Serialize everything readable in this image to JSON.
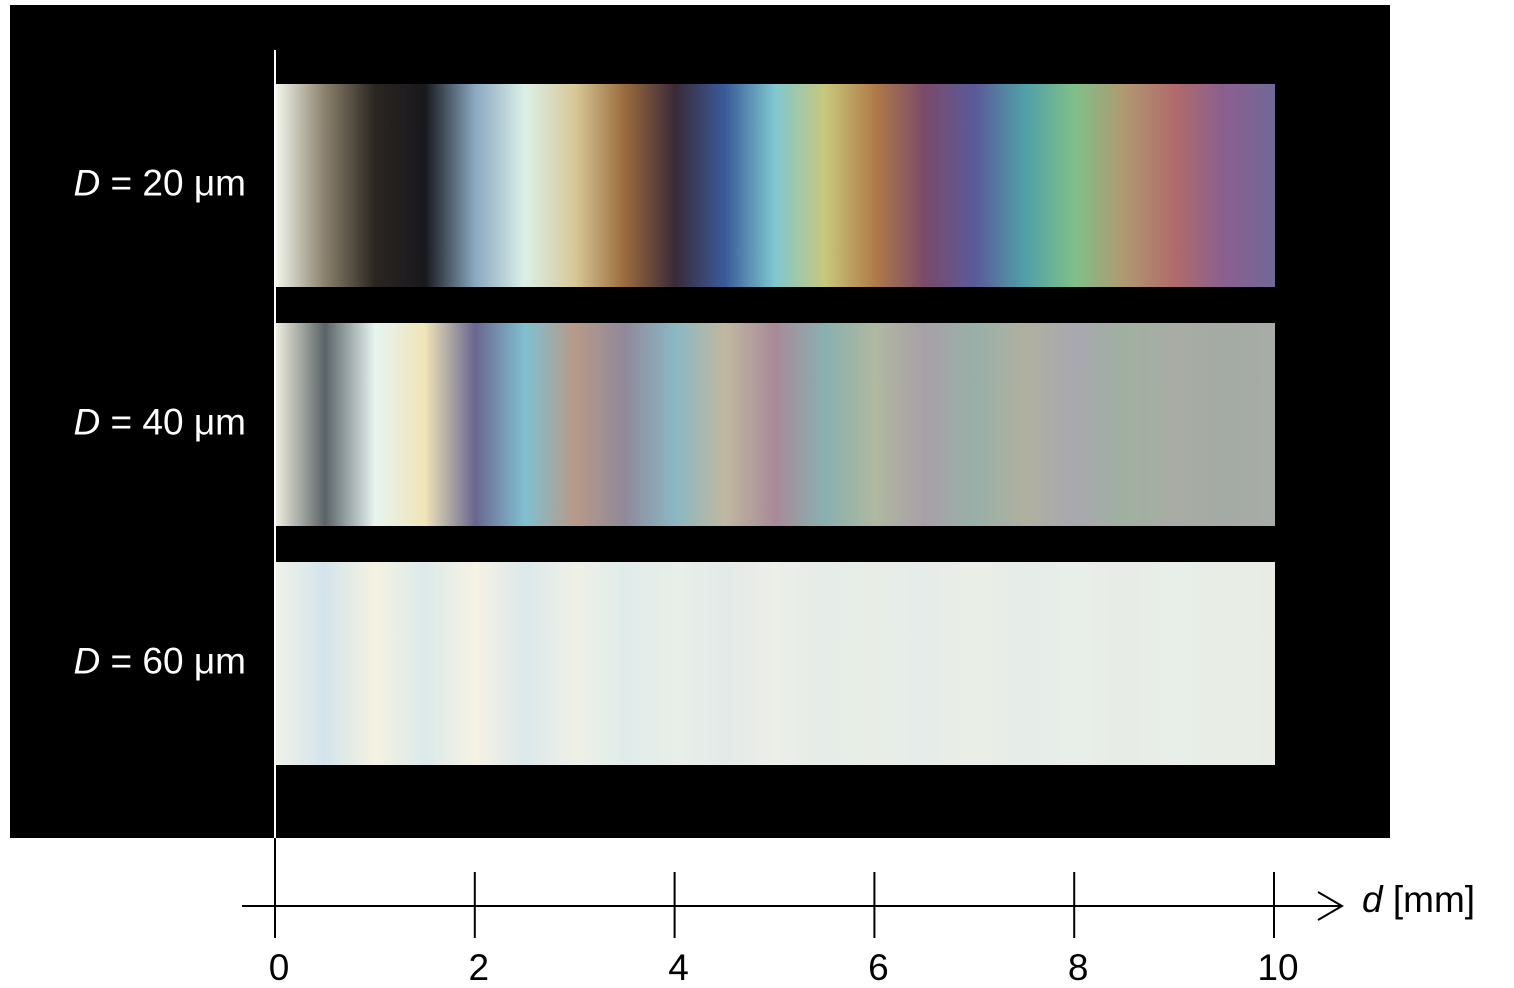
{
  "chart_data": {
    "type": "color-strips",
    "xlabel": "d [mm]",
    "xlim": [
      0,
      10
    ],
    "xticks": [
      0,
      2,
      4,
      6,
      8,
      10
    ],
    "series": [
      {
        "name": "D = 20 μm",
        "colors": [
          "#f4f8ee",
          "#8a806c",
          "#2a2520",
          "#18181e",
          "#8aa8c0",
          "#dcf0e8",
          "#d8c898",
          "#9a6a3c",
          "#3a2a38",
          "#3a5a9a",
          "#80c8d0",
          "#c8c87c",
          "#b07a48",
          "#7a4a6a",
          "#5a5a9a",
          "#50a0a8",
          "#80c088",
          "#b09870",
          "#b06a6a",
          "#8a6090",
          "#706898"
        ]
      },
      {
        "name": "D = 40 μm",
        "colors": [
          "#f0f0e0",
          "#5a6468",
          "#e8f4f0",
          "#f0e4b8",
          "#6a6690",
          "#80c0d0",
          "#b89a88",
          "#90889a",
          "#8ab8c4",
          "#c0b8a0",
          "#a88a98",
          "#88b0b0",
          "#b0b8a0",
          "#a8a0a8",
          "#98b0a8",
          "#b0b0a0",
          "#a8a8b0",
          "#a0b0a0",
          "#a8aca4",
          "#a4aaa4",
          "#a8aca8"
        ]
      },
      {
        "name": "D = 60 μm",
        "colors": [
          "#f0f2e8",
          "#d4e4ec",
          "#f4f2e2",
          "#dceaea",
          "#f6f2e4",
          "#dce8ec",
          "#eef0e6",
          "#e0ecea",
          "#e8eee8",
          "#e4eae8",
          "#eceee8",
          "#e6ece8",
          "#e8eee6",
          "#e6ecea",
          "#eaeee6",
          "#e6ece8",
          "#e8eee8",
          "#e8ece6",
          "#e8eee8",
          "#e8eee6",
          "#e8ece4"
        ]
      }
    ]
  }
}
